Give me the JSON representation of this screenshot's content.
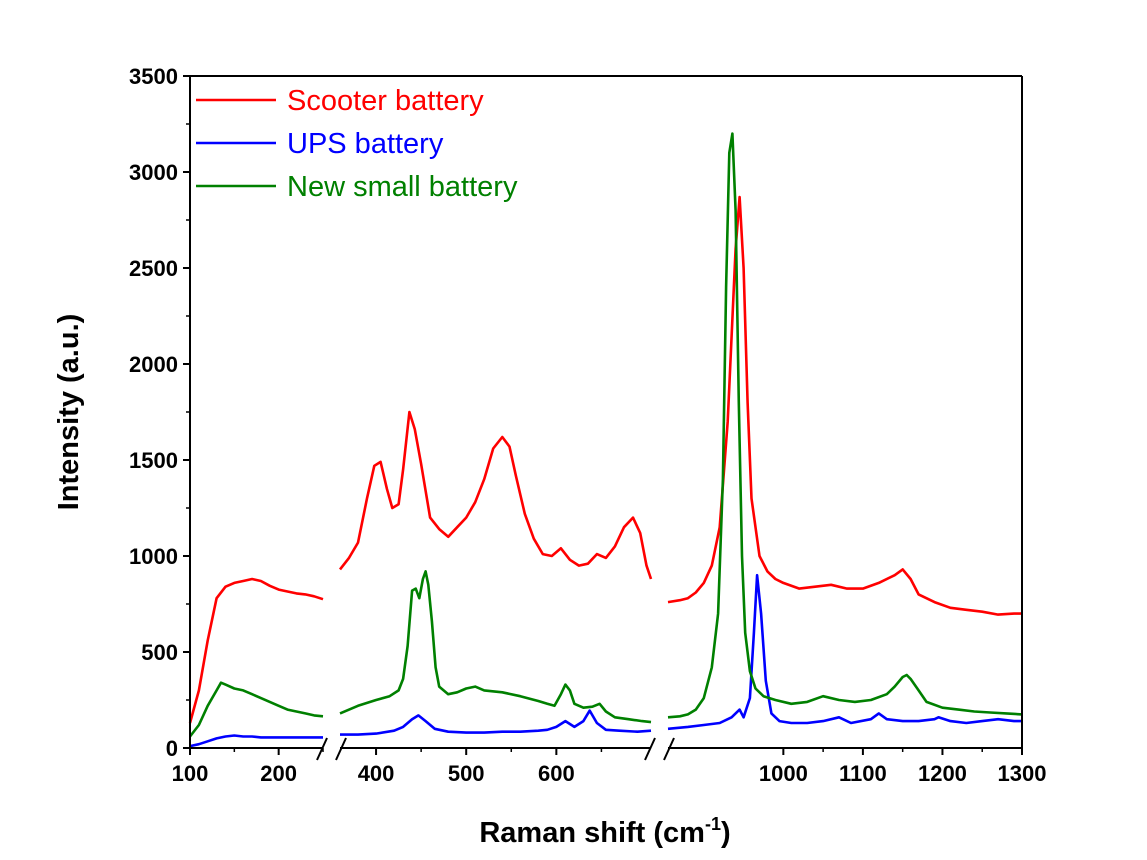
{
  "chart_data": {
    "type": "line",
    "xlabel": "Raman shift (cm",
    "xlabel_sup": "-1",
    "xlabel_end": ")",
    "ylabel": "Intensity (a.u.)",
    "ylim": [
      0,
      3500
    ],
    "y_ticks": [
      "0",
      "500",
      "1000",
      "1500",
      "2000",
      "2500",
      "3000",
      "3500"
    ],
    "x_ticks": [
      {
        "value": 100,
        "label": "100"
      },
      {
        "value": 200,
        "label": "200"
      },
      {
        "value": 400,
        "label": "400"
      },
      {
        "value": 500,
        "label": "500"
      },
      {
        "value": 600,
        "label": "600"
      },
      {
        "value": 1000,
        "label": "1000"
      },
      {
        "value": 1100,
        "label": "1100"
      },
      {
        "value": 1200,
        "label": "1200"
      },
      {
        "value": 1300,
        "label": "1300"
      }
    ],
    "x_segments": [
      [
        100,
        250
      ],
      [
        360,
        705
      ],
      [
        855,
        1300
      ]
    ],
    "grid": false,
    "legend_position": "top-left",
    "series": [
      {
        "name": "Scooter battery",
        "color": "#ff0000",
        "segments": [
          [
            [
              100,
              130
            ],
            [
              110,
              300
            ],
            [
              120,
              560
            ],
            [
              130,
              780
            ],
            [
              140,
              840
            ],
            [
              150,
              860
            ],
            [
              160,
              870
            ],
            [
              170,
              880
            ],
            [
              180,
              870
            ],
            [
              190,
              845
            ],
            [
              200,
              825
            ],
            [
              210,
              815
            ],
            [
              220,
              805
            ],
            [
              230,
              800
            ],
            [
              240,
              790
            ],
            [
              250,
              775
            ]
          ],
          [
            [
              360,
              930
            ],
            [
              370,
              990
            ],
            [
              380,
              1070
            ],
            [
              390,
              1300
            ],
            [
              398,
              1470
            ],
            [
              405,
              1490
            ],
            [
              412,
              1350
            ],
            [
              418,
              1250
            ],
            [
              425,
              1270
            ],
            [
              430,
              1450
            ],
            [
              437,
              1750
            ],
            [
              443,
              1660
            ],
            [
              450,
              1480
            ],
            [
              460,
              1200
            ],
            [
              470,
              1140
            ],
            [
              480,
              1100
            ],
            [
              490,
              1150
            ],
            [
              500,
              1200
            ],
            [
              510,
              1280
            ],
            [
              520,
              1400
            ],
            [
              530,
              1560
            ],
            [
              540,
              1620
            ],
            [
              548,
              1570
            ],
            [
              555,
              1420
            ],
            [
              565,
              1220
            ],
            [
              575,
              1090
            ],
            [
              585,
              1010
            ],
            [
              595,
              1000
            ],
            [
              605,
              1040
            ],
            [
              615,
              980
            ],
            [
              625,
              950
            ],
            [
              635,
              960
            ],
            [
              645,
              1010
            ],
            [
              655,
              990
            ],
            [
              665,
              1050
            ],
            [
              675,
              1150
            ],
            [
              685,
              1200
            ],
            [
              693,
              1120
            ],
            [
              700,
              950
            ],
            [
              705,
              880
            ]
          ],
          [
            [
              855,
              760
            ],
            [
              870,
              770
            ],
            [
              880,
              780
            ],
            [
              890,
              810
            ],
            [
              900,
              860
            ],
            [
              910,
              950
            ],
            [
              920,
              1150
            ],
            [
              930,
              1700
            ],
            [
              940,
              2600
            ],
            [
              945,
              2870
            ],
            [
              950,
              2500
            ],
            [
              955,
              1800
            ],
            [
              960,
              1300
            ],
            [
              970,
              1000
            ],
            [
              980,
              920
            ],
            [
              990,
              880
            ],
            [
              1000,
              860
            ],
            [
              1020,
              830
            ],
            [
              1040,
              840
            ],
            [
              1060,
              850
            ],
            [
              1080,
              830
            ],
            [
              1100,
              830
            ],
            [
              1120,
              860
            ],
            [
              1140,
              900
            ],
            [
              1150,
              930
            ],
            [
              1160,
              880
            ],
            [
              1170,
              800
            ],
            [
              1190,
              760
            ],
            [
              1210,
              730
            ],
            [
              1230,
              720
            ],
            [
              1250,
              710
            ],
            [
              1270,
              695
            ],
            [
              1290,
              700
            ],
            [
              1300,
              700
            ]
          ]
        ]
      },
      {
        "name": "UPS battery",
        "color": "#0000ff",
        "segments": [
          [
            [
              100,
              10
            ],
            [
              110,
              20
            ],
            [
              120,
              35
            ],
            [
              130,
              50
            ],
            [
              140,
              60
            ],
            [
              150,
              65
            ],
            [
              160,
              60
            ],
            [
              170,
              60
            ],
            [
              180,
              55
            ],
            [
              200,
              55
            ],
            [
              220,
              55
            ],
            [
              240,
              55
            ],
            [
              250,
              55
            ]
          ],
          [
            [
              360,
              70
            ],
            [
              380,
              70
            ],
            [
              400,
              75
            ],
            [
              420,
              90
            ],
            [
              430,
              110
            ],
            [
              440,
              150
            ],
            [
              447,
              170
            ],
            [
              455,
              140
            ],
            [
              465,
              100
            ],
            [
              480,
              85
            ],
            [
              500,
              80
            ],
            [
              520,
              80
            ],
            [
              540,
              85
            ],
            [
              560,
              85
            ],
            [
              580,
              90
            ],
            [
              590,
              95
            ],
            [
              600,
              110
            ],
            [
              610,
              140
            ],
            [
              620,
              110
            ],
            [
              630,
              140
            ],
            [
              637,
              195
            ],
            [
              645,
              130
            ],
            [
              655,
              95
            ],
            [
              670,
              90
            ],
            [
              690,
              85
            ],
            [
              705,
              90
            ]
          ],
          [
            [
              855,
              100
            ],
            [
              880,
              110
            ],
            [
              900,
              120
            ],
            [
              920,
              130
            ],
            [
              935,
              160
            ],
            [
              945,
              200
            ],
            [
              950,
              160
            ],
            [
              958,
              260
            ],
            [
              963,
              600
            ],
            [
              967,
              900
            ],
            [
              972,
              700
            ],
            [
              978,
              350
            ],
            [
              985,
              180
            ],
            [
              995,
              140
            ],
            [
              1010,
              130
            ],
            [
              1030,
              130
            ],
            [
              1050,
              140
            ],
            [
              1070,
              160
            ],
            [
              1085,
              130
            ],
            [
              1110,
              150
            ],
            [
              1120,
              180
            ],
            [
              1130,
              150
            ],
            [
              1150,
              140
            ],
            [
              1170,
              140
            ],
            [
              1190,
              150
            ],
            [
              1195,
              160
            ],
            [
              1210,
              140
            ],
            [
              1230,
              130
            ],
            [
              1250,
              140
            ],
            [
              1270,
              150
            ],
            [
              1290,
              140
            ],
            [
              1300,
              140
            ]
          ]
        ]
      },
      {
        "name": "New small battery",
        "color": "#008000",
        "segments": [
          [
            [
              100,
              60
            ],
            [
              110,
              120
            ],
            [
              120,
              220
            ],
            [
              130,
              300
            ],
            [
              135,
              340
            ],
            [
              140,
              330
            ],
            [
              150,
              310
            ],
            [
              160,
              300
            ],
            [
              170,
              280
            ],
            [
              180,
              260
            ],
            [
              190,
              240
            ],
            [
              200,
              220
            ],
            [
              210,
              200
            ],
            [
              220,
              190
            ],
            [
              230,
              180
            ],
            [
              240,
              170
            ],
            [
              250,
              165
            ]
          ],
          [
            [
              360,
              180
            ],
            [
              380,
              220
            ],
            [
              400,
              250
            ],
            [
              415,
              270
            ],
            [
              425,
              300
            ],
            [
              430,
              360
            ],
            [
              435,
              530
            ],
            [
              440,
              820
            ],
            [
              444,
              830
            ],
            [
              448,
              780
            ],
            [
              452,
              880
            ],
            [
              455,
              920
            ],
            [
              458,
              850
            ],
            [
              462,
              660
            ],
            [
              466,
              420
            ],
            [
              470,
              320
            ],
            [
              480,
              280
            ],
            [
              490,
              290
            ],
            [
              500,
              310
            ],
            [
              510,
              320
            ],
            [
              520,
              300
            ],
            [
              540,
              290
            ],
            [
              560,
              270
            ],
            [
              580,
              245
            ],
            [
              590,
              230
            ],
            [
              598,
              220
            ],
            [
              605,
              280
            ],
            [
              610,
              330
            ],
            [
              615,
              300
            ],
            [
              620,
              230
            ],
            [
              630,
              210
            ],
            [
              640,
              215
            ],
            [
              648,
              230
            ],
            [
              655,
              190
            ],
            [
              665,
              160
            ],
            [
              680,
              150
            ],
            [
              695,
              140
            ],
            [
              705,
              135
            ]
          ],
          [
            [
              855,
              160
            ],
            [
              870,
              165
            ],
            [
              880,
              175
            ],
            [
              890,
              200
            ],
            [
              900,
              260
            ],
            [
              910,
              420
            ],
            [
              918,
              700
            ],
            [
              924,
              1400
            ],
            [
              928,
              2400
            ],
            [
              932,
              3100
            ],
            [
              936,
              3200
            ],
            [
              940,
              2800
            ],
            [
              944,
              1800
            ],
            [
              948,
              1000
            ],
            [
              952,
              600
            ],
            [
              958,
              400
            ],
            [
              965,
              310
            ],
            [
              975,
              270
            ],
            [
              990,
              250
            ],
            [
              1010,
              230
            ],
            [
              1030,
              240
            ],
            [
              1050,
              270
            ],
            [
              1070,
              250
            ],
            [
              1090,
              240
            ],
            [
              1110,
              250
            ],
            [
              1130,
              280
            ],
            [
              1140,
              320
            ],
            [
              1150,
              370
            ],
            [
              1155,
              380
            ],
            [
              1160,
              360
            ],
            [
              1170,
              300
            ],
            [
              1180,
              240
            ],
            [
              1200,
              210
            ],
            [
              1220,
              200
            ],
            [
              1240,
              190
            ],
            [
              1260,
              185
            ],
            [
              1280,
              180
            ],
            [
              1300,
              175
            ]
          ]
        ]
      }
    ]
  }
}
